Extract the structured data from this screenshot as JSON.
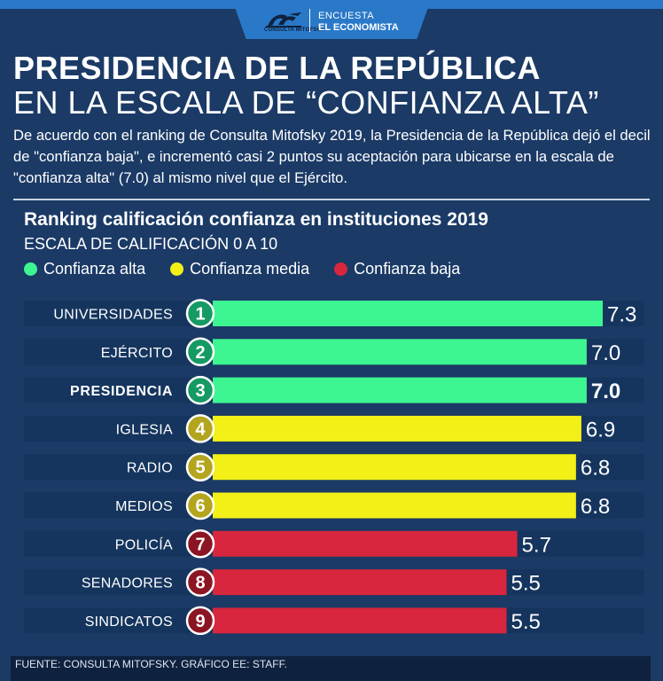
{
  "header": {
    "logo_text": "CONSULTA MITOFSKY",
    "line1": "ENCUESTA",
    "line2": "EL ECONOMISTA"
  },
  "title": {
    "line1": "PRESIDENCIA DE LA REPÚBLICA",
    "line2": "EN LA ESCALA DE “CONFIANZA ALTA”"
  },
  "description": "De acuerdo con el ranking de Consulta Mitofsky 2019, la Presidencia de la República dejó el decil de \"confianza baja\", e incrementó casi 2 puntos su aceptación para ubicarse en la escala de \"confianza alta\" (7.0) al mismo nivel que el Ejército.",
  "colors": {
    "alta": "#3df591",
    "media": "#f2f016",
    "baja": "#d7263d",
    "circle_alta": "#169a63",
    "circle_media": "#b3a51d",
    "circle_baja": "#8c1523",
    "track": "#15355e"
  },
  "chart_data": {
    "type": "bar",
    "orientation": "horizontal",
    "title": "Ranking calificación confianza en instituciones 2019",
    "subtitle": "ESCALA DE CALIFICACIÓN 0 A 10",
    "xlim": [
      0,
      10
    ],
    "legend": [
      {
        "label": "Confianza alta",
        "level": "alta"
      },
      {
        "label": "Confianza media",
        "level": "media"
      },
      {
        "label": "Confianza baja",
        "level": "baja"
      }
    ],
    "categories": [
      "UNIVERSIDADES",
      "EJÉRCITO",
      "PRESIDENCIA",
      "IGLESIA",
      "RADIO",
      "MEDIOS",
      "POLICÍA",
      "SENADORES",
      "SINDICATOS"
    ],
    "ranks": [
      "1",
      "2",
      "3",
      "4",
      "5",
      "6",
      "7",
      "8",
      "9"
    ],
    "values": [
      7.3,
      7.0,
      7.0,
      6.9,
      6.8,
      6.8,
      5.7,
      5.5,
      5.5
    ],
    "value_labels": [
      "7.3",
      "7.0",
      "7.0",
      "6.9",
      "6.8",
      "6.8",
      "5.7",
      "5.5",
      "5.5"
    ],
    "levels": [
      "alta",
      "alta",
      "alta",
      "media",
      "media",
      "media",
      "baja",
      "baja",
      "baja"
    ],
    "highlight": "PRESIDENCIA"
  },
  "footer": "FUENTE: CONSULTA MITOFSKY. GRÁFICO EE: STAFF."
}
